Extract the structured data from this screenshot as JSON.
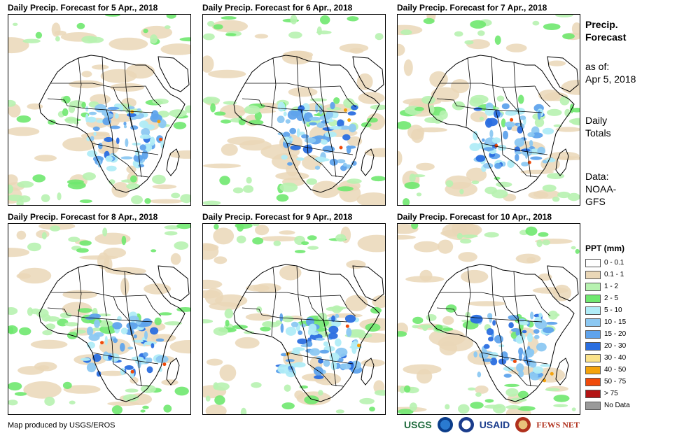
{
  "panels": [
    {
      "title": "Daily Precip. Forecast for 5 Apr., 2018"
    },
    {
      "title": "Daily Precip. Forecast for 6 Apr., 2018"
    },
    {
      "title": "Daily Precip. Forecast for 7 Apr., 2018"
    },
    {
      "title": "Daily Precip. Forecast for 8 Apr., 2018"
    },
    {
      "title": "Daily Precip. Forecast for 9 Apr., 2018"
    },
    {
      "title": "Daily Precip. Forecast for 10 Apr., 2018"
    }
  ],
  "side": {
    "title_line1": "Precip.",
    "title_line2": "Forecast",
    "asof_line1": "as of:",
    "asof_line2": "Apr 5, 2018",
    "totals_line1": "Daily",
    "totals_line2": "Totals",
    "data_line1": "Data:",
    "data_line2": "NOAA-",
    "data_line3": "GFS"
  },
  "legend": {
    "title": "PPT (mm)",
    "entries": [
      {
        "label": "0 - 0.1",
        "color": "#ffffff"
      },
      {
        "label": "0.1 - 1",
        "color": "#ead7b7"
      },
      {
        "label": "1 - 2",
        "color": "#b7f2b0"
      },
      {
        "label": "2 - 5",
        "color": "#6fe86f"
      },
      {
        "label": "5 - 10",
        "color": "#b0ecf7"
      },
      {
        "label": "10 - 15",
        "color": "#8cc8f2"
      },
      {
        "label": "15 - 20",
        "color": "#5fa3ec"
      },
      {
        "label": "20 - 30",
        "color": "#2a6ee0"
      },
      {
        "label": "30 - 40",
        "color": "#fbe38a"
      },
      {
        "label": "40 - 50",
        "color": "#f4a30c"
      },
      {
        "label": "50 - 75",
        "color": "#f04a0a"
      },
      {
        "label": "> 75",
        "color": "#b41414"
      },
      {
        "label": "No Data",
        "color": "#9a9a9a"
      }
    ]
  },
  "credit": "Map produced by USGS/EROS",
  "logos": {
    "usgs": "USGS",
    "usaid": "USAID",
    "fewsnet": "FEWS NET",
    "usgs_color": "#1f6b3d",
    "usaid_color": "#1a3c8c",
    "fews_color": "#b0301c"
  }
}
